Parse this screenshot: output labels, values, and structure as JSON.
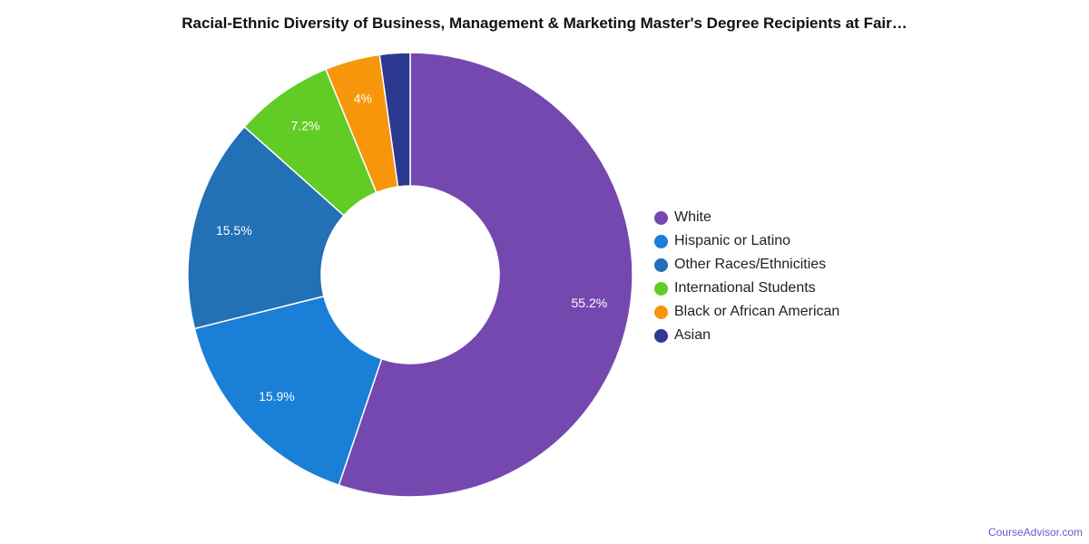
{
  "chart_data": {
    "type": "pie",
    "title": "Racial-Ethnic Diversity of Business, Management & Marketing Master's Degree Recipients at Fair…",
    "donut": true,
    "legend_position": "right",
    "slices": [
      {
        "label": "White",
        "value": 55.2,
        "display": "55.2%",
        "color": "#7548b0"
      },
      {
        "label": "Hispanic or Latino",
        "value": 15.9,
        "display": "15.9%",
        "color": "#1a7fd6"
      },
      {
        "label": "Other Races/Ethnicities",
        "value": 15.5,
        "display": "15.5%",
        "color": "#2270b5"
      },
      {
        "label": "International Students",
        "value": 7.2,
        "display": "7.2%",
        "color": "#62cc26"
      },
      {
        "label": "Black or African American",
        "value": 4.0,
        "display": "4%",
        "color": "#f7960a"
      },
      {
        "label": "Asian",
        "value": 2.2,
        "display": "",
        "color": "#2b3990"
      }
    ]
  },
  "watermark": "CourseAdvisor.com"
}
